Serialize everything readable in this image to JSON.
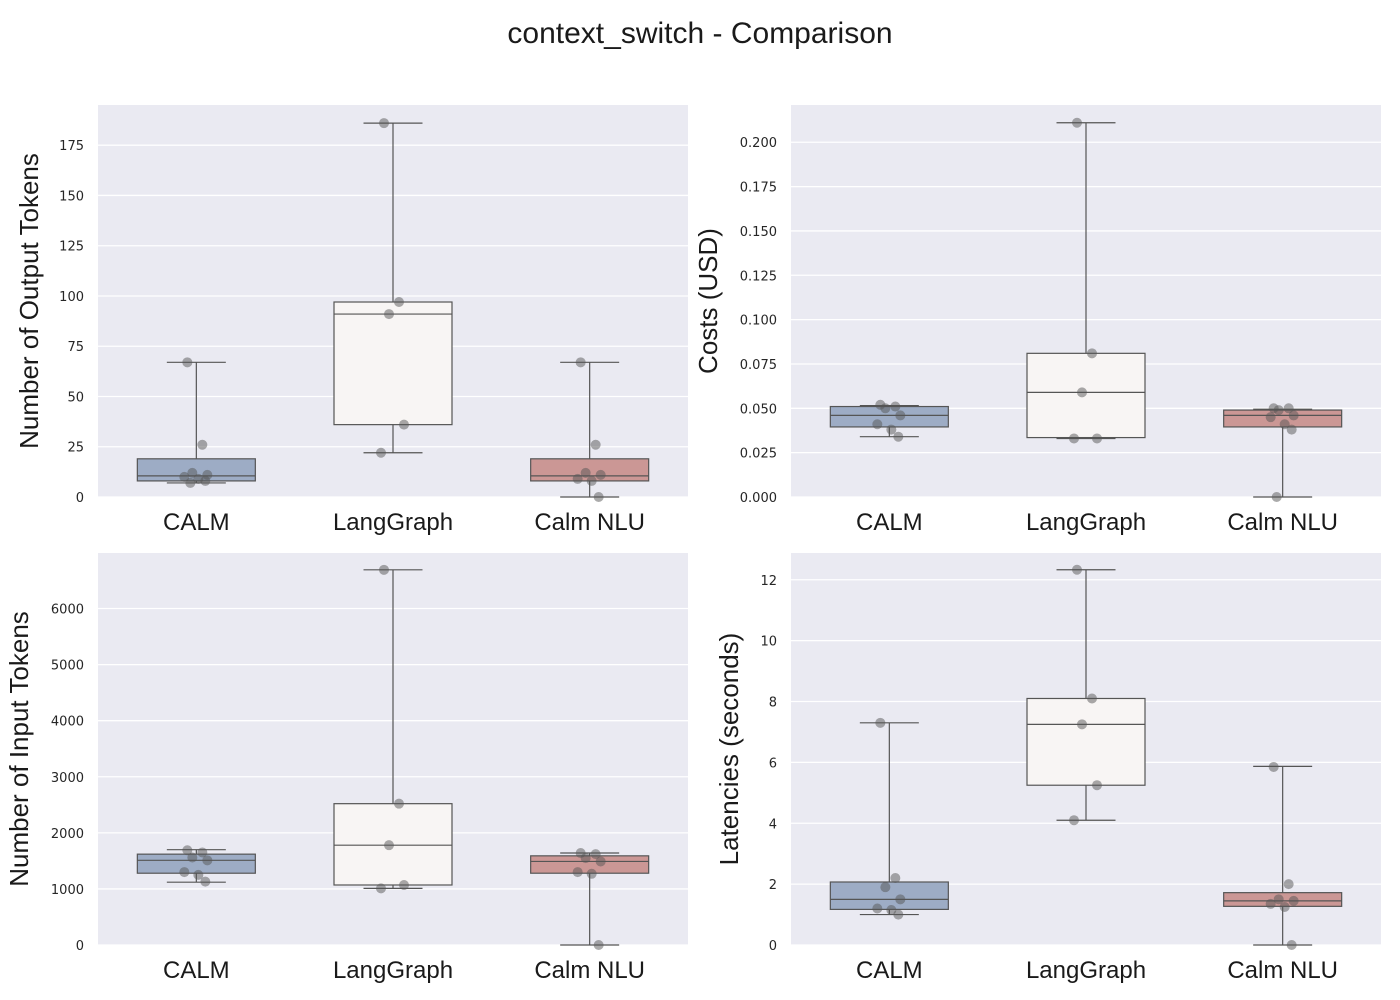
{
  "title": "context_switch - Comparison",
  "colors": {
    "background": "#eaeaf2",
    "grid": "#ffffff",
    "CALM": "#9dacc5",
    "LangGraph": "#f8f5f4",
    "Calm NLU": "#cb9795",
    "lines": "#555555",
    "points": "#555555"
  },
  "chart_data": [
    {
      "type": "box",
      "panel": "top-left",
      "title": "",
      "ylabel": "Number of Output Tokens",
      "xlabel": "",
      "categories": [
        "CALM",
        "LangGraph",
        "Calm NLU"
      ],
      "ylim": [
        0,
        195
      ],
      "yticks": [
        0,
        25,
        50,
        75,
        100,
        125,
        150,
        175
      ],
      "ytick_labels": [
        "0",
        "25",
        "50",
        "75",
        "100",
        "125",
        "150",
        "175"
      ],
      "boxes": [
        {
          "whislo": 7,
          "q1": 8,
          "med": 10.5,
          "q3": 19,
          "whishi": 67
        },
        {
          "whislo": 22,
          "q1": 36,
          "med": 91,
          "q3": 97,
          "whishi": 186
        },
        {
          "whislo": 0,
          "q1": 8,
          "med": 10.5,
          "q3": 19,
          "whishi": 67
        }
      ],
      "points": [
        [
          67,
          26,
          12,
          11,
          10,
          9,
          8,
          7
        ],
        [
          186,
          97,
          91,
          36,
          22
        ],
        [
          67,
          26,
          12,
          11,
          9,
          8,
          0
        ]
      ]
    },
    {
      "type": "box",
      "panel": "top-right",
      "title": "",
      "ylabel": "Costs (USD)",
      "xlabel": "",
      "categories": [
        "CALM",
        "LangGraph",
        "Calm NLU"
      ],
      "ylim": [
        0,
        0.221
      ],
      "yticks": [
        0,
        0.025,
        0.05,
        0.075,
        0.1,
        0.125,
        0.15,
        0.175,
        0.2
      ],
      "ytick_labels": [
        "0.000",
        "0.025",
        "0.050",
        "0.075",
        "0.100",
        "0.125",
        "0.150",
        "0.175",
        "0.200"
      ],
      "boxes": [
        {
          "whislo": 0.034,
          "q1": 0.0395,
          "med": 0.046,
          "q3": 0.051,
          "whishi": 0.0515
        },
        {
          "whislo": 0.033,
          "q1": 0.0335,
          "med": 0.059,
          "q3": 0.081,
          "whishi": 0.211
        },
        {
          "whislo": 0.0,
          "q1": 0.0395,
          "med": 0.046,
          "q3": 0.049,
          "whishi": 0.0495
        }
      ],
      "points": [
        [
          0.052,
          0.051,
          0.05,
          0.046,
          0.041,
          0.038,
          0.034
        ],
        [
          0.211,
          0.081,
          0.059,
          0.033,
          0.033
        ],
        [
          0.05,
          0.05,
          0.049,
          0.046,
          0.045,
          0.041,
          0.038,
          0.0
        ]
      ]
    },
    {
      "type": "box",
      "panel": "bottom-left",
      "title": "",
      "ylabel": "Number of Input Tokens",
      "xlabel": "",
      "categories": [
        "CALM",
        "LangGraph",
        "Calm NLU"
      ],
      "ylim": [
        0,
        6990
      ],
      "yticks": [
        0,
        1000,
        2000,
        3000,
        4000,
        5000,
        6000
      ],
      "ytick_labels": [
        "0",
        "1000",
        "2000",
        "3000",
        "4000",
        "5000",
        "6000"
      ],
      "boxes": [
        {
          "whislo": 1120,
          "q1": 1280,
          "med": 1510,
          "q3": 1620,
          "whishi": 1700
        },
        {
          "whislo": 1010,
          "q1": 1070,
          "med": 1780,
          "q3": 2520,
          "whishi": 6690
        },
        {
          "whislo": 0,
          "q1": 1280,
          "med": 1490,
          "q3": 1590,
          "whishi": 1640
        }
      ],
      "points": [
        [
          1690,
          1650,
          1560,
          1510,
          1300,
          1250,
          1130
        ],
        [
          6690,
          2520,
          1780,
          1070,
          1010
        ],
        [
          1640,
          1620,
          1550,
          1490,
          1300,
          1270,
          0
        ]
      ]
    },
    {
      "type": "box",
      "panel": "bottom-right",
      "title": "",
      "ylabel": "Latencies (seconds)",
      "xlabel": "",
      "categories": [
        "CALM",
        "LangGraph",
        "Calm NLU"
      ],
      "ylim": [
        0,
        12.88
      ],
      "yticks": [
        0,
        2,
        4,
        6,
        8,
        10,
        12
      ],
      "ytick_labels": [
        "0",
        "2",
        "4",
        "6",
        "8",
        "10",
        "12"
      ],
      "boxes": [
        {
          "whislo": 1.0,
          "q1": 1.17,
          "med": 1.5,
          "q3": 2.07,
          "whishi": 7.3
        },
        {
          "whislo": 4.1,
          "q1": 5.25,
          "med": 7.25,
          "q3": 8.1,
          "whishi": 12.33
        },
        {
          "whislo": 0.0,
          "q1": 1.27,
          "med": 1.45,
          "q3": 1.72,
          "whishi": 5.87
        }
      ],
      "points": [
        [
          7.3,
          2.2,
          1.9,
          1.5,
          1.2,
          1.15,
          1.0
        ],
        [
          12.33,
          8.1,
          7.25,
          5.25,
          4.1
        ],
        [
          5.85,
          2.0,
          1.5,
          1.45,
          1.35,
          1.25,
          0.0
        ]
      ]
    }
  ]
}
